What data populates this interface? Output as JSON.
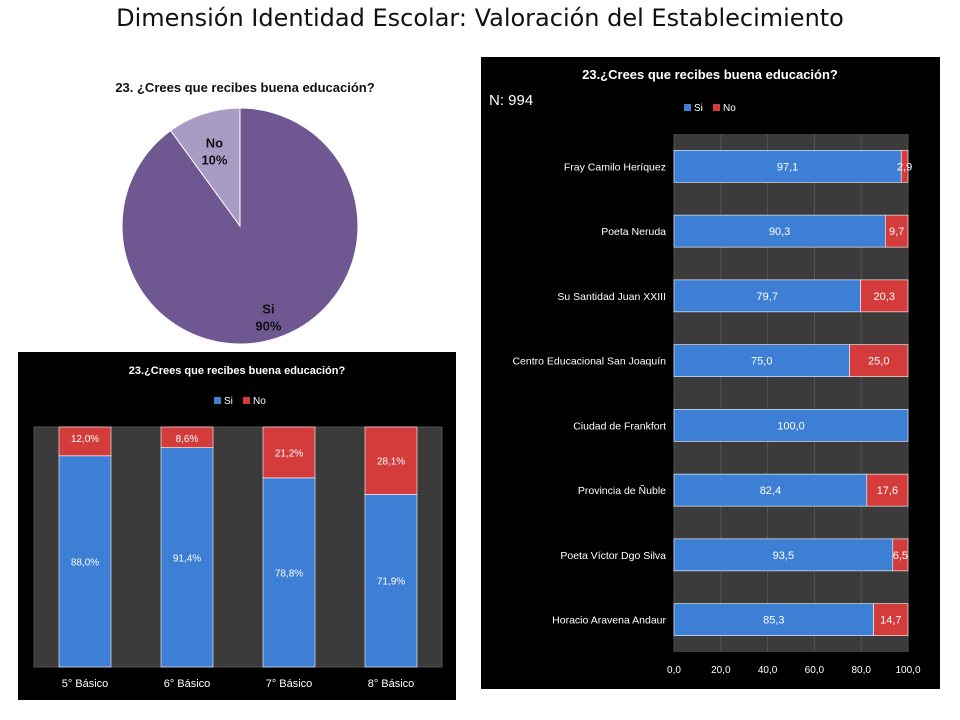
{
  "page": {
    "title": "Dimensión Identidad Escolar: Valoración del Establecimiento"
  },
  "colors": {
    "si_pie": "#6f5891",
    "no_pie": "#a89bc4",
    "si_bar": "#3c7fd4",
    "no_bar": "#d43c3c",
    "chart_bg": "#000000",
    "plot_bg": "#3b3b3b"
  },
  "chart_data": [
    {
      "type": "pie",
      "title": "23. ¿Crees que recibes buena educación?",
      "slices": [
        {
          "label": "Si",
          "value": 90,
          "display": "90%"
        },
        {
          "label": "No",
          "value": 10,
          "display": "10%"
        }
      ]
    },
    {
      "type": "bar",
      "orientation": "vertical",
      "stacked": true,
      "title": "23.¿Crees que recibes buena educación?",
      "legend_position": "top",
      "categories": [
        "5° Básico",
        "6° Básico",
        "7° Básico",
        "8° Básico"
      ],
      "series": [
        {
          "name": "Si",
          "values": [
            88.0,
            91.4,
            78.8,
            71.9
          ],
          "labels": [
            "88,0%",
            "91,4%",
            "78,8%",
            "71,9%"
          ]
        },
        {
          "name": "No",
          "values": [
            12.0,
            8.6,
            21.2,
            28.1
          ],
          "labels": [
            "12,0%",
            "8,6%",
            "21,2%",
            "28,1%"
          ]
        }
      ],
      "ylim": [
        0,
        100
      ]
    },
    {
      "type": "bar",
      "orientation": "horizontal",
      "stacked": true,
      "title": "23.¿Crees que recibes buena educación?",
      "annotation": "N: 994",
      "legend_position": "top",
      "categories": [
        "Fray Camilo Heríquez",
        "Poeta Neruda",
        "Su Santidad Juan XXIII",
        "Centro Educacional San Joaquín",
        "Ciudad de Frankfort",
        "Provincia de Ñuble",
        "Poeta Víctor Dgo Silva",
        "Horacio Aravena Andaur"
      ],
      "series": [
        {
          "name": "Si",
          "values": [
            97.1,
            90.3,
            79.7,
            75.0,
            100.0,
            82.4,
            93.5,
            85.3
          ],
          "labels": [
            "97,1",
            "90,3",
            "79,7",
            "75,0",
            "100,0",
            "82,4",
            "93,5",
            "85,3"
          ]
        },
        {
          "name": "No",
          "values": [
            2.9,
            9.7,
            20.3,
            25.0,
            0,
            17.6,
            6.5,
            14.7
          ],
          "labels": [
            "2,9",
            "9,7",
            "20,3",
            "25,0",
            "",
            "17,6",
            "6,5",
            "14,7"
          ]
        }
      ],
      "xlim": [
        0,
        100
      ],
      "xticks": [
        0,
        20,
        40,
        60,
        80,
        100
      ],
      "xtick_labels": [
        "0,0",
        "20,0",
        "40,0",
        "60,0",
        "80,0",
        "100,0"
      ]
    }
  ]
}
